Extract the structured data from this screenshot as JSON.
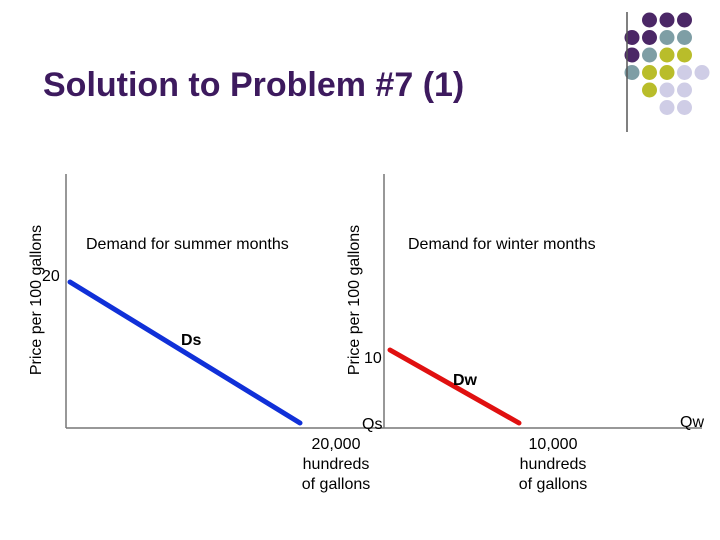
{
  "title": "Solution to Problem #7 (1)",
  "colors": {
    "title": "#3d1a5e",
    "dot_purple": "#4b2766",
    "dot_teal": "#7e9ea5",
    "dot_yellow": "#b9bd2a",
    "dot_lavender": "#cfcde6",
    "summer_line": "#1030d8",
    "winter_line": "#e01010"
  },
  "left_graph": {
    "y_axis_label": "Price per 100 gallons",
    "subtitle": "Demand for summer months",
    "price_label": "20",
    "curve_label": "Ds",
    "qty_axis_label": "Qs",
    "qty_value": [
      "20,000",
      "hundreds",
      "of gallons"
    ]
  },
  "right_graph": {
    "y_axis_label": "Price per 100 gallons",
    "subtitle": "Demand for winter months",
    "price_label": "10",
    "curve_label": "Dw",
    "qty_axis_label": "Qw",
    "qty_value": [
      "10,000",
      "hundreds",
      "of gallons"
    ]
  },
  "chart_data": [
    {
      "type": "line",
      "title": "Demand for summer months",
      "ylabel": "Price per 100 gallons",
      "xlabel": "Qs",
      "series": [
        {
          "name": "Ds",
          "x": [
            0,
            20000
          ],
          "y": [
            20,
            0
          ]
        }
      ]
    },
    {
      "type": "line",
      "title": "Demand for winter months",
      "ylabel": "Price per 100 gallons",
      "xlabel": "Qw",
      "series": [
        {
          "name": "Dw",
          "x": [
            0,
            10000
          ],
          "y": [
            10,
            0
          ]
        }
      ]
    }
  ]
}
